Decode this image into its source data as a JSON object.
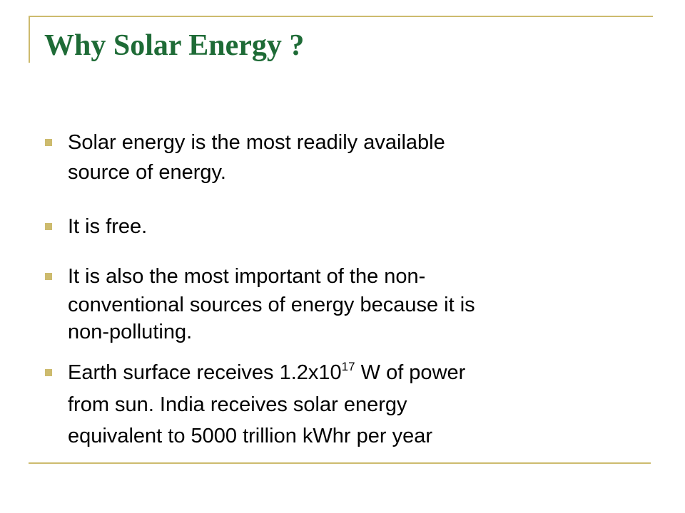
{
  "title": "Why Solar Energy ?",
  "bullets": [
    {
      "lines": [
        "Solar energy is the most readily available",
        "source of energy."
      ]
    },
    {
      "lines": [
        "It is free."
      ]
    },
    {
      "lines": [
        "It is also the most important of the non-",
        "conventional sources of energy because it is",
        "non-polluting."
      ]
    },
    {
      "first_line": {
        "text": "Earth surface receives 1.2x10",
        "superscript": "17",
        "after": " W of power"
      },
      "lines": [
        "from sun. India receives solar energy",
        "equivalent to 5000 trillion kWhr per year"
      ]
    }
  ]
}
